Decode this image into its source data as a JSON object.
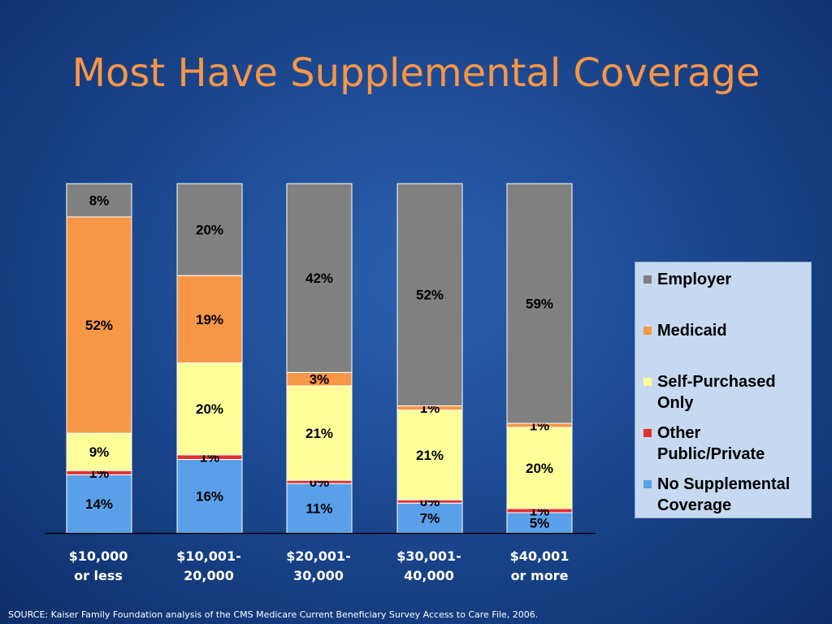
{
  "title": "Most Have Supplemental Coverage",
  "source": "SOURCE: Kaiser Family Foundation analysis of the CMS Medicare Current Beneficiary Survey Access to Care File, 2006.",
  "chart_data": {
    "type": "bar",
    "stacked": true,
    "categories": [
      "$10,000 or less",
      "$10,001-20,000",
      "$20,001-30,000",
      "$30,001-40,000",
      "$40,001 or more"
    ],
    "category_lines": [
      [
        "$10,000",
        "or less"
      ],
      [
        "$10,001-",
        "20,000"
      ],
      [
        "$20,001-",
        "30,000"
      ],
      [
        "$30,001-",
        "40,000"
      ],
      [
        "$40,001",
        "or more"
      ]
    ],
    "series": [
      {
        "name": "No Supplemental Coverage",
        "color": "#5aa0e8",
        "values": [
          14,
          16,
          11,
          7,
          5
        ]
      },
      {
        "name": "Other Public/Private",
        "color": "#e0302f",
        "values": [
          1,
          1,
          0,
          0,
          1
        ]
      },
      {
        "name": "Self-Purchased Only",
        "color": "#ffff99",
        "values": [
          9,
          20,
          21,
          21,
          20
        ]
      },
      {
        "name": "Medicaid",
        "color": "#f79646",
        "values": [
          52,
          19,
          3,
          1,
          1
        ]
      },
      {
        "name": "Employer",
        "color": "#808080",
        "values": [
          8,
          20,
          42,
          52,
          59
        ]
      }
    ],
    "value_format": "{v}%",
    "legend_position": "right",
    "grid": false
  },
  "legend": {
    "items": [
      {
        "label": "Employer",
        "color": "#808080"
      },
      {
        "label": "Medicaid",
        "color": "#f79646"
      },
      {
        "label": "Self-Purchased Only",
        "color": "#ffff99"
      },
      {
        "label": "Other Public/Private",
        "color": "#e0302f"
      },
      {
        "label": "No Supplemental Coverage",
        "color": "#5aa0e8"
      }
    ]
  }
}
